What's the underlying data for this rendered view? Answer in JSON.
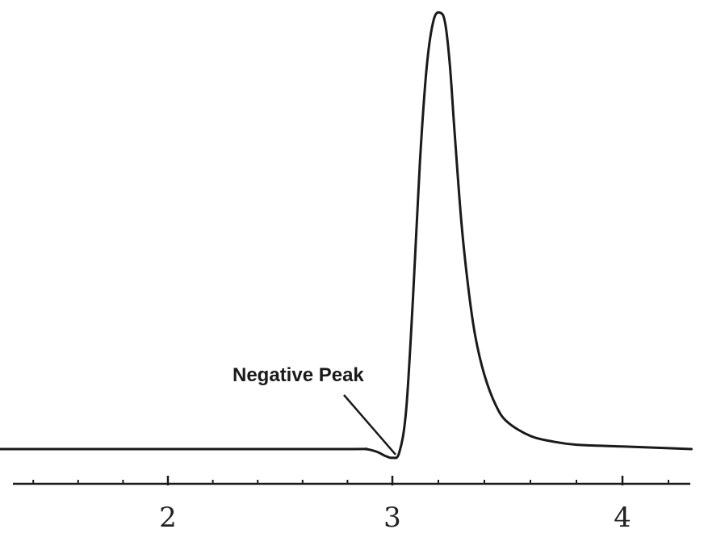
{
  "chart_data": {
    "type": "line",
    "title": "",
    "xlabel": "",
    "ylabel": "",
    "xlim": [
      1.2,
      4.3
    ],
    "ylim": [
      -0.02,
      1.0
    ],
    "x_ticks_major": [
      2,
      3,
      4
    ],
    "x_tick_labels": [
      "2",
      "3",
      "4"
    ],
    "x_ticks_minor_step": 0.2,
    "grid": false,
    "series": [
      {
        "color": "#1a1a1a",
        "x": [
          1.2,
          2.0,
          2.8,
          2.88,
          2.93,
          2.97,
          3.0,
          3.03,
          3.06,
          3.09,
          3.12,
          3.15,
          3.18,
          3.21,
          3.23,
          3.25,
          3.27,
          3.3,
          3.33,
          3.36,
          3.4,
          3.45,
          3.5,
          3.6,
          3.7,
          3.8,
          4.0,
          4.2,
          4.3
        ],
        "y": [
          0.0,
          0.0,
          0.0,
          0.0,
          -0.006,
          -0.016,
          -0.02,
          -0.008,
          0.09,
          0.35,
          0.66,
          0.88,
          0.985,
          1.0,
          0.975,
          0.88,
          0.73,
          0.52,
          0.37,
          0.26,
          0.17,
          0.1,
          0.062,
          0.03,
          0.017,
          0.01,
          0.006,
          0.002,
          0.0
        ]
      }
    ],
    "annotations": [
      {
        "text": "Negative Peak",
        "x": 3.0,
        "y": -0.02
      }
    ]
  }
}
